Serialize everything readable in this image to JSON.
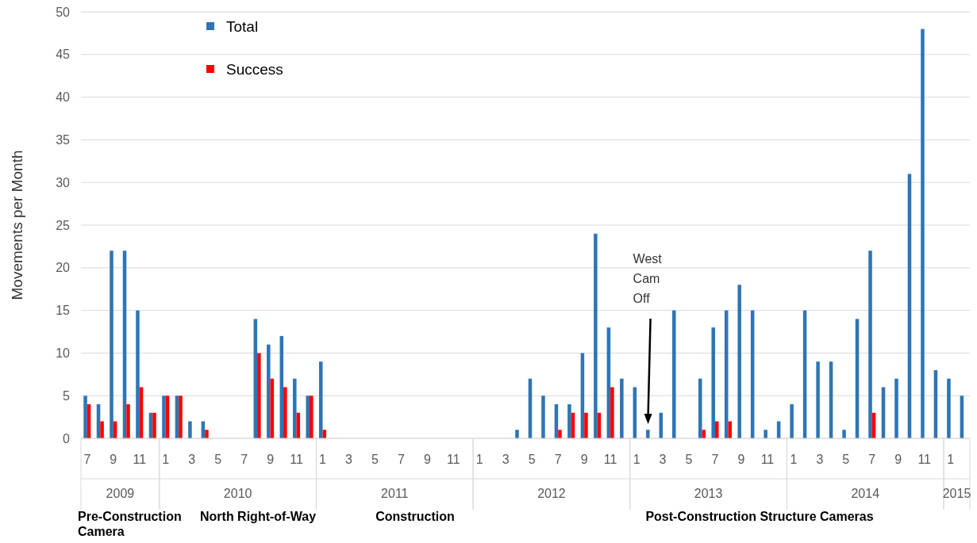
{
  "chart_data": {
    "type": "bar",
    "ylabel": "Movements per Month",
    "categories": [
      "7",
      null,
      "9",
      null,
      "11",
      null,
      "1",
      null,
      "3",
      null,
      "5",
      null,
      "7",
      null,
      "9",
      null,
      "11",
      null,
      "1",
      null,
      "3",
      null,
      "5",
      null,
      "7",
      null,
      "9",
      null,
      "11",
      null,
      "1",
      null,
      "3",
      null,
      "5",
      null,
      "7",
      null,
      "9",
      null,
      "11",
      null,
      "1",
      null,
      "3",
      null,
      "5",
      null,
      "7",
      null,
      "9",
      null,
      "11",
      null,
      "1",
      null,
      "3",
      null,
      "5",
      null,
      "7",
      null,
      "9",
      null,
      "11",
      null,
      "1",
      null
    ],
    "series": [
      {
        "name": "Total",
        "color": "#2e75b6",
        "values": [
          5,
          4,
          22,
          22,
          15,
          3,
          5,
          5,
          2,
          2,
          0,
          0,
          0,
          14,
          11,
          12,
          7,
          5,
          9,
          0,
          0,
          0,
          0,
          0,
          0,
          0,
          0,
          0,
          0,
          0,
          0,
          0,
          0,
          1,
          7,
          5,
          4,
          4,
          10,
          24,
          13,
          7,
          6,
          1,
          3,
          15,
          0,
          7,
          13,
          15,
          18,
          15,
          1,
          2,
          4,
          15,
          9,
          9,
          1,
          14,
          22,
          6,
          7,
          31,
          48,
          8,
          7,
          5
        ]
      },
      {
        "name": "Success",
        "color": "#ff0000",
        "values": [
          4,
          2,
          2,
          4,
          6,
          3,
          5,
          5,
          0,
          1,
          0,
          0,
          0,
          10,
          7,
          6,
          3,
          5,
          1,
          0,
          0,
          0,
          0,
          0,
          0,
          0,
          0,
          0,
          0,
          0,
          0,
          0,
          0,
          0,
          0,
          0,
          1,
          3,
          3,
          3,
          6,
          0,
          0,
          0,
          0,
          0,
          0,
          1,
          2,
          2,
          0,
          0,
          0,
          0,
          0,
          0,
          0,
          0,
          0,
          0,
          3,
          0,
          0,
          0,
          0,
          0,
          0,
          0
        ]
      }
    ],
    "ylim": [
      0,
      50
    ],
    "yticks": [
      0,
      5,
      10,
      15,
      20,
      25,
      30,
      35,
      40,
      45,
      50
    ],
    "grid": "y",
    "legend": "top left",
    "annotations": [
      "2009",
      "2010",
      "2011",
      "2012",
      "2013",
      "2014",
      "2015",
      "Pre-Construction Camera",
      "North Right-of-Way",
      "Construction",
      "Post-Construction Structure Cameras",
      "West Cam Off"
    ]
  }
}
